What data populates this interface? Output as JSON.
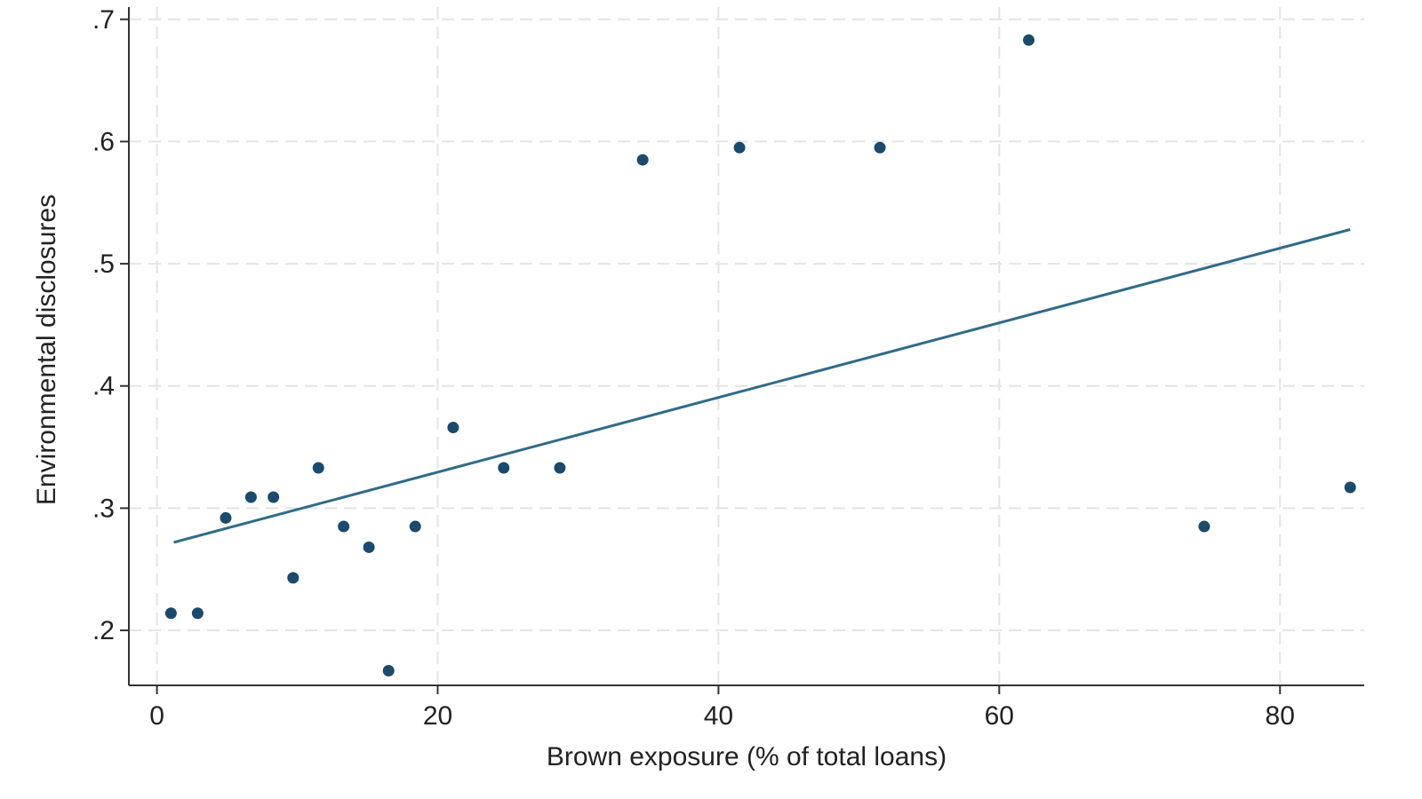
{
  "chart_data": {
    "type": "scatter",
    "title": "",
    "xlabel": "Brown exposure (% of total loans)",
    "ylabel": "Environmental disclosures",
    "xlim": [
      -2,
      86
    ],
    "ylim": [
      0.155,
      0.71
    ],
    "x_ticks": [
      {
        "value": 0,
        "label": "0"
      },
      {
        "value": 20,
        "label": "20"
      },
      {
        "value": 40,
        "label": "40"
      },
      {
        "value": 60,
        "label": "60"
      },
      {
        "value": 80,
        "label": "80"
      }
    ],
    "y_ticks": [
      {
        "value": 0.2,
        "label": ".2"
      },
      {
        "value": 0.3,
        "label": ".3"
      },
      {
        "value": 0.4,
        "label": ".4"
      },
      {
        "value": 0.5,
        "label": ".5"
      },
      {
        "value": 0.6,
        "label": ".6"
      },
      {
        "value": 0.7,
        "label": ".7"
      }
    ],
    "grid": true,
    "series": [
      {
        "type": "scatter",
        "color": "#1a4a6e",
        "points": [
          {
            "x": 1.0,
            "y": 0.214
          },
          {
            "x": 2.9,
            "y": 0.214
          },
          {
            "x": 4.9,
            "y": 0.292
          },
          {
            "x": 6.7,
            "y": 0.309
          },
          {
            "x": 8.3,
            "y": 0.309
          },
          {
            "x": 9.7,
            "y": 0.243
          },
          {
            "x": 11.5,
            "y": 0.333
          },
          {
            "x": 13.3,
            "y": 0.285
          },
          {
            "x": 15.1,
            "y": 0.268
          },
          {
            "x": 16.5,
            "y": 0.167
          },
          {
            "x": 18.4,
            "y": 0.285
          },
          {
            "x": 21.1,
            "y": 0.366
          },
          {
            "x": 24.7,
            "y": 0.333
          },
          {
            "x": 28.7,
            "y": 0.333
          },
          {
            "x": 34.6,
            "y": 0.585
          },
          {
            "x": 41.5,
            "y": 0.595
          },
          {
            "x": 51.5,
            "y": 0.595
          },
          {
            "x": 62.1,
            "y": 0.683
          },
          {
            "x": 74.6,
            "y": 0.285
          },
          {
            "x": 85.0,
            "y": 0.317
          }
        ]
      },
      {
        "type": "line",
        "color": "#2f6b8a",
        "points": [
          {
            "x": 1.2,
            "y": 0.272
          },
          {
            "x": 85.0,
            "y": 0.528
          }
        ]
      }
    ]
  }
}
